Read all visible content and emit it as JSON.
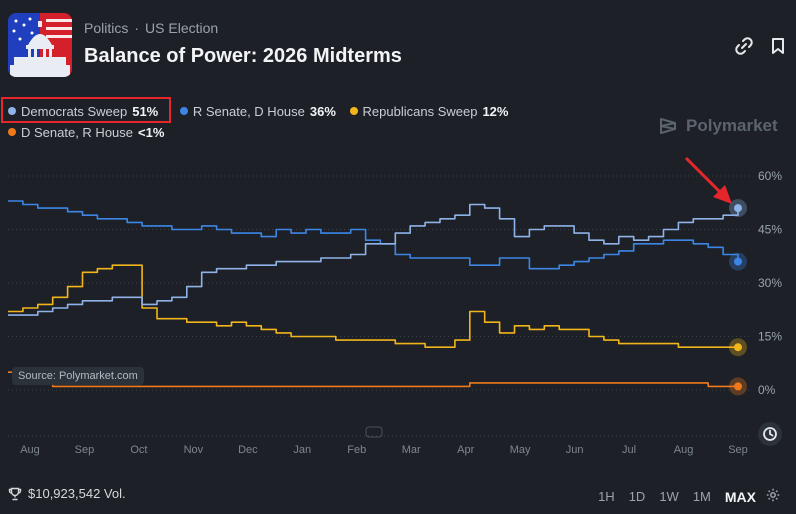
{
  "header": {
    "breadcrumb": [
      "Politics",
      "US Election"
    ],
    "title": "Balance of Power: 2026 Midterms"
  },
  "legend": [
    {
      "name": "Democrats Sweep",
      "pct": "51%",
      "color": "#8fb2e8"
    },
    {
      "name": "R Senate, D House",
      "pct": "36%",
      "color": "#3d86e6"
    },
    {
      "name": "Republicans Sweep",
      "pct": "12%",
      "color": "#f2b51c"
    },
    {
      "name": "D Senate, R House",
      "pct": "<1%",
      "color": "#f07a1a"
    }
  ],
  "watermark": "Polymarket",
  "source_label": "Source: Polymarket.com",
  "volume": "$10,923,542 Vol.",
  "time_ranges": [
    "1H",
    "1D",
    "1W",
    "1M",
    "MAX"
  ],
  "active_range": "MAX",
  "chart_data": {
    "type": "line",
    "x_labels": [
      "Aug",
      "Sep",
      "Oct",
      "Nov",
      "Dec",
      "Jan",
      "Feb",
      "Mar",
      "Apr",
      "May",
      "Jun",
      "Jul",
      "Aug",
      "Sep"
    ],
    "y_ticks": [
      "60%",
      "45%",
      "30%",
      "15%",
      "0%"
    ],
    "ylim": [
      0,
      60
    ],
    "grid": true,
    "series": [
      {
        "name": "Democrats Sweep",
        "color": "#8fb2e8",
        "values": [
          21,
          21,
          22,
          23,
          24,
          25,
          25,
          26,
          26,
          24,
          25,
          26,
          29,
          33,
          34,
          34,
          35,
          35,
          36,
          36,
          36,
          37,
          37,
          38,
          41,
          41,
          44,
          46,
          47,
          48,
          49,
          52,
          51,
          48,
          43,
          45,
          46,
          46,
          44,
          42,
          41,
          43,
          42,
          43,
          45,
          47,
          48,
          48,
          49,
          51
        ]
      },
      {
        "name": "R Senate, D House",
        "color": "#3d86e6",
        "values": [
          53,
          52,
          51,
          51,
          50,
          49,
          48,
          48,
          47,
          46,
          46,
          45,
          45,
          46,
          45,
          44,
          44,
          43,
          45,
          44,
          45,
          44,
          44,
          45,
          42,
          41,
          38,
          37,
          37,
          37,
          37,
          35,
          35,
          37,
          37,
          34,
          34,
          35,
          36,
          37,
          38,
          39,
          41,
          41,
          42,
          42,
          41,
          40,
          38,
          36
        ]
      },
      {
        "name": "Republicans Sweep",
        "color": "#f2b51c",
        "values": [
          22,
          23,
          24,
          26,
          29,
          33,
          34,
          35,
          35,
          23,
          20,
          20,
          19,
          19,
          18,
          19,
          18,
          17,
          16,
          15,
          15,
          15,
          14,
          14,
          14,
          14,
          13,
          13,
          12,
          12,
          14,
          22,
          19,
          16,
          18,
          17,
          18,
          17,
          17,
          15,
          14,
          13,
          13,
          13,
          13,
          12,
          12,
          12,
          12,
          12
        ]
      },
      {
        "name": "D Senate, R House",
        "color": "#f07a1a",
        "values": [
          5,
          3,
          2,
          1,
          1,
          1,
          1,
          1,
          1,
          1,
          1,
          1,
          1,
          1,
          1,
          1,
          1,
          1,
          1,
          1,
          1,
          1,
          1,
          1,
          1,
          1,
          1,
          1,
          1,
          1,
          1,
          2,
          2,
          2,
          2,
          2,
          2,
          2,
          2,
          2,
          2,
          2,
          2,
          2,
          2,
          2,
          2,
          1,
          1,
          1
        ]
      }
    ]
  }
}
